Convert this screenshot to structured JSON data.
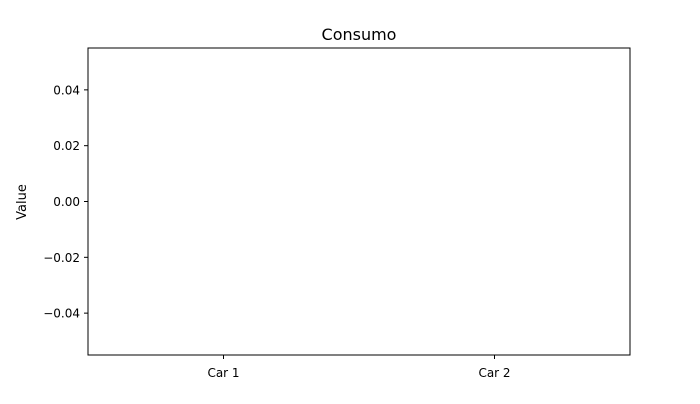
{
  "chart_data": {
    "type": "bar",
    "title": "Consumo",
    "xlabel": "",
    "ylabel": "Value",
    "categories": [
      "Car 1",
      "Car 2"
    ],
    "values": [
      0,
      0
    ],
    "ylim": [
      -0.055,
      0.055
    ],
    "yticks": [
      0.04,
      0.02,
      0.0,
      -0.02,
      -0.04
    ],
    "ytick_labels": [
      "0.04",
      "0.02",
      "0.00",
      "−0.02",
      "−0.04"
    ],
    "grid": false,
    "legend": "none",
    "colors": {
      "axes": "#000000",
      "background": "#ffffff",
      "bar": "#1f77b4"
    }
  }
}
